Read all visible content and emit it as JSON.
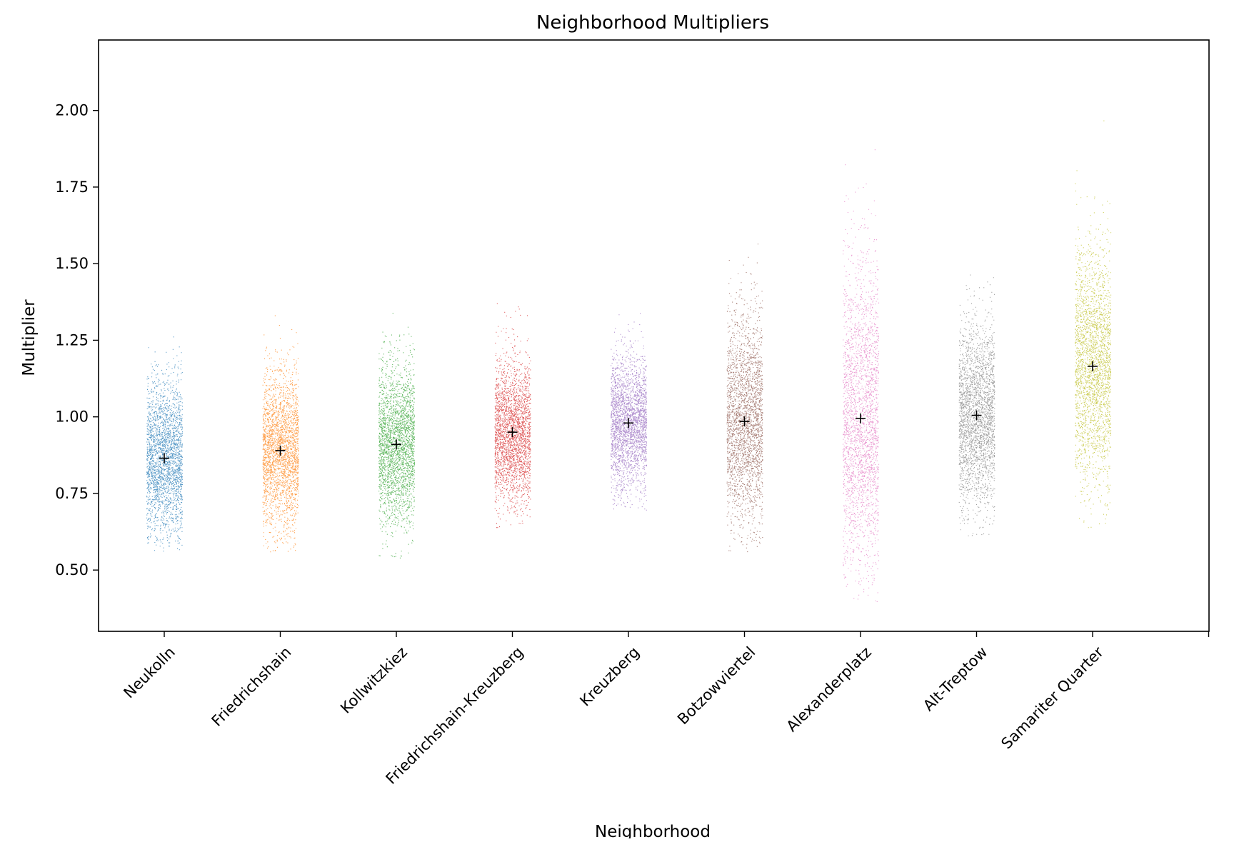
{
  "chart_data": {
    "type": "scatter",
    "title": "Neighborhood Multipliers",
    "xlabel": "Neighborhood",
    "ylabel": "Multiplier",
    "ylim": [
      0.3,
      2.23
    ],
    "yticks": [
      "0.50",
      "0.75",
      "1.00",
      "1.25",
      "1.50",
      "1.75",
      "2.00"
    ],
    "grid": false,
    "legend": "none",
    "mean_marker": {
      "shape": "plus",
      "color": "#000000"
    },
    "series": [
      {
        "category": "Neukolln",
        "color": "#1f77b4",
        "mean": 0.865,
        "sd": 0.125,
        "min": 0.56,
        "max": 1.34
      },
      {
        "category": "Friedrichshain",
        "color": "#ff7f0e",
        "mean": 0.89,
        "sd": 0.13,
        "min": 0.56,
        "max": 1.39
      },
      {
        "category": "Kollwitzkiez",
        "color": "#2ca02c",
        "mean": 0.91,
        "sd": 0.13,
        "min": 0.54,
        "max": 1.38
      },
      {
        "category": "Friedrichshain-Kreuzberg",
        "color": "#d62728",
        "mean": 0.95,
        "sd": 0.12,
        "min": 0.64,
        "max": 1.38
      },
      {
        "category": "Kreuzberg",
        "color": "#9467bd",
        "mean": 0.98,
        "sd": 0.11,
        "min": 0.69,
        "max": 1.44
      },
      {
        "category": "Botzowviertel",
        "color": "#8c564b",
        "mean": 0.985,
        "sd": 0.17,
        "min": 0.56,
        "max": 1.59
      },
      {
        "category": "Alexanderplatz",
        "color": "#e377c2",
        "mean": 0.995,
        "sd": 0.26,
        "min": 0.39,
        "max": 2.15
      },
      {
        "category": "Alt-Treptow",
        "color": "#7f7f7f",
        "mean": 1.005,
        "sd": 0.15,
        "min": 0.61,
        "max": 1.55
      },
      {
        "category": "Samariter Quarter",
        "color": "#bcbd22",
        "mean": 1.165,
        "sd": 0.19,
        "min": 0.63,
        "max": 2.07
      }
    ]
  }
}
